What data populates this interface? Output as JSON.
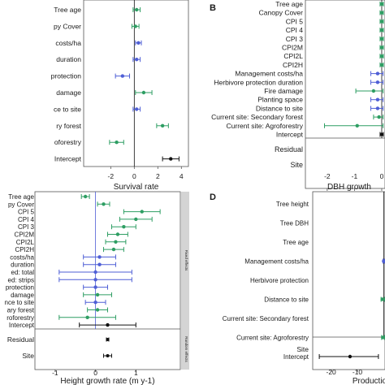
{
  "colors": {
    "green": "#2e9e63",
    "blue": "#4f5fd6",
    "black": "#111111",
    "strip": "#d4d4d4",
    "panel_border": "#555555"
  },
  "chart_data": [
    {
      "panel": "A",
      "type": "forest",
      "xlabel": "Survival rate",
      "xlim": [
        -4.3,
        4.6
      ],
      "xticks": [
        -2,
        0,
        2,
        4
      ],
      "rows": [
        {
          "label": "Tree age",
          "est": 0.2,
          "lo": -0.1,
          "hi": 0.5,
          "color": "green"
        },
        {
          "label": "py Cover",
          "est": 0.1,
          "lo": -0.2,
          "hi": 0.4,
          "color": "green"
        },
        {
          "label": "costs/ha",
          "est": 0.35,
          "lo": 0.1,
          "hi": 0.6,
          "color": "blue"
        },
        {
          "label": "duration",
          "est": 0.2,
          "lo": -0.1,
          "hi": 0.5,
          "color": "blue"
        },
        {
          "label": "protection",
          "est": -1.0,
          "lo": -1.6,
          "hi": -0.4,
          "color": "blue"
        },
        {
          "label": "damage",
          "est": 0.8,
          "lo": 0.1,
          "hi": 1.5,
          "color": "green"
        },
        {
          "label": "ce to site",
          "est": 0.2,
          "lo": -0.1,
          "hi": 0.5,
          "color": "blue"
        },
        {
          "label": "ry forest",
          "est": 2.4,
          "lo": 1.9,
          "hi": 2.9,
          "color": "green"
        },
        {
          "label": "oforestry",
          "est": -1.5,
          "lo": -2.1,
          "hi": -0.9,
          "color": "green"
        },
        {
          "label": "Intercept",
          "est": 3.1,
          "lo": 2.4,
          "hi": 3.8,
          "color": "black"
        }
      ]
    },
    {
      "panel": "B",
      "type": "forest",
      "xlabel": "DBH growth",
      "xlim": [
        -2.8,
        0.12
      ],
      "xticks": [
        -2,
        -1,
        0
      ],
      "rows": [
        {
          "label": "Tree age",
          "est": 0.0,
          "lo": -0.06,
          "hi": 0.06,
          "color": "green"
        },
        {
          "label": "Canopy Cover",
          "est": 0.0,
          "lo": -0.06,
          "hi": 0.06,
          "color": "green"
        },
        {
          "label": "CPI 5",
          "est": 0.0,
          "lo": -0.06,
          "hi": 0.06,
          "color": "green"
        },
        {
          "label": "CPI 4",
          "est": 0.0,
          "lo": -0.06,
          "hi": 0.06,
          "color": "green"
        },
        {
          "label": "CPI 3",
          "est": 0.0,
          "lo": -0.06,
          "hi": 0.06,
          "color": "green"
        },
        {
          "label": "CPI2M",
          "est": 0.0,
          "lo": -0.06,
          "hi": 0.06,
          "color": "green"
        },
        {
          "label": "CPI2L",
          "est": 0.0,
          "lo": -0.06,
          "hi": 0.06,
          "color": "green"
        },
        {
          "label": "CPI2H",
          "est": 0.0,
          "lo": -0.06,
          "hi": 0.06,
          "color": "green"
        },
        {
          "label": "Management costs/ha",
          "est": -0.15,
          "lo": -0.4,
          "hi": 0.05,
          "color": "blue"
        },
        {
          "label": "Herbivore protection duration",
          "est": -0.15,
          "lo": -0.4,
          "hi": 0.05,
          "color": "blue"
        },
        {
          "label": "Fire damage",
          "est": -0.3,
          "lo": -0.95,
          "hi": 0.05,
          "color": "green"
        },
        {
          "label": "Planting space",
          "est": -0.15,
          "lo": -0.4,
          "hi": 0.05,
          "color": "blue"
        },
        {
          "label": "Distance to site",
          "est": -0.15,
          "lo": -0.4,
          "hi": 0.05,
          "color": "blue"
        },
        {
          "label": "Current site: Secondary forest",
          "est": -0.1,
          "lo": -0.3,
          "hi": 0.05,
          "color": "green"
        },
        {
          "label": "Current site: Agroforestry",
          "est": -0.9,
          "lo": -2.1,
          "hi": 0.05,
          "color": "green"
        },
        {
          "label": "Intercept",
          "est": 0.0,
          "lo": -0.06,
          "hi": 0.06,
          "color": "black"
        }
      ],
      "random": [
        {
          "label": "Residual"
        },
        {
          "label": "Site"
        }
      ]
    },
    {
      "panel": "C",
      "type": "forest",
      "xlabel": "Height growth rate (m y-1)",
      "xlim": [
        -1.5,
        2.1
      ],
      "xticks": [
        -1,
        0,
        1
      ],
      "fixed_strip": "Fixed effects",
      "random_strip": "Random effects",
      "rows": [
        {
          "label": "Tree age",
          "est": -0.25,
          "lo": -0.35,
          "hi": -0.15,
          "color": "green"
        },
        {
          "label": "py Cover",
          "est": 0.2,
          "lo": 0.05,
          "hi": 0.35,
          "color": "green"
        },
        {
          "label": "CPI 5",
          "est": 1.15,
          "lo": 0.7,
          "hi": 1.6,
          "color": "green"
        },
        {
          "label": "CPI 4",
          "est": 1.0,
          "lo": 0.6,
          "hi": 1.4,
          "color": "green"
        },
        {
          "label": "CPI 3",
          "est": 0.7,
          "lo": 0.4,
          "hi": 1.0,
          "color": "green"
        },
        {
          "label": "CPI2M",
          "est": 0.55,
          "lo": 0.3,
          "hi": 0.8,
          "color": "green"
        },
        {
          "label": "CPI2L",
          "est": 0.5,
          "lo": 0.25,
          "hi": 0.75,
          "color": "green"
        },
        {
          "label": "CPI2H",
          "est": 0.45,
          "lo": 0.2,
          "hi": 0.7,
          "color": "green"
        },
        {
          "label": "costs/ha",
          "est": 0.1,
          "lo": -0.3,
          "hi": 0.5,
          "color": "blue"
        },
        {
          "label": "duration",
          "est": 0.1,
          "lo": -0.3,
          "hi": 0.5,
          "color": "blue"
        },
        {
          "label": "ed: total",
          "est": 0.0,
          "lo": -0.9,
          "hi": 0.9,
          "color": "blue"
        },
        {
          "label": "ed: strips",
          "est": 0.0,
          "lo": -0.9,
          "hi": 0.9,
          "color": "blue"
        },
        {
          "label": "protection",
          "est": 0.0,
          "lo": -0.3,
          "hi": 0.3,
          "color": "blue"
        },
        {
          "label": "damage",
          "est": 0.05,
          "lo": -0.3,
          "hi": 0.4,
          "color": "green"
        },
        {
          "label": "nce to site",
          "est": 0.0,
          "lo": -0.25,
          "hi": 0.25,
          "color": "blue"
        },
        {
          "label": "ary forest",
          "est": 0.05,
          "lo": -0.2,
          "hi": 0.3,
          "color": "green"
        },
        {
          "label": "roforestry",
          "est": -0.2,
          "lo": -0.9,
          "hi": 0.5,
          "color": "green"
        },
        {
          "label": "Intercept",
          "est": 0.3,
          "lo": -0.4,
          "hi": 1.0,
          "color": "black"
        }
      ],
      "random": [
        {
          "label": "Residual",
          "est": 0.3,
          "lo": 0.27,
          "hi": 0.33,
          "color": "black"
        },
        {
          "label": "Site",
          "est": 0.3,
          "lo": 0.2,
          "hi": 0.4,
          "color": "black"
        }
      ]
    },
    {
      "panel": "D",
      "type": "forest",
      "xlabel": "Productio",
      "xlim": [
        -27,
        0.5
      ],
      "xticks": [
        -20,
        -10
      ],
      "rows": [
        {
          "label": "Tree height"
        },
        {
          "label": "Tree DBH"
        },
        {
          "label": "Tree age"
        },
        {
          "label": "Management costs/ha",
          "est": 0.0,
          "lo": -0.3,
          "hi": 0.3,
          "color": "blue"
        },
        {
          "label": "Herbivore protection"
        },
        {
          "label": "Distance to site",
          "est": -0.5,
          "lo": -1.0,
          "hi": 0.3,
          "color": "green"
        },
        {
          "label": "Current site: Secondary forest"
        },
        {
          "label": "Current site: Agroforestry",
          "est": -0.3,
          "lo": -0.8,
          "hi": 0.3,
          "color": "green"
        },
        {
          "label": "Intercept",
          "est": -12.8,
          "lo": -24.5,
          "hi": -2.0,
          "color": "black"
        }
      ],
      "random": [
        {
          "label": "Site"
        }
      ]
    }
  ],
  "panel_letters": {
    "B": "B",
    "D": "D"
  }
}
